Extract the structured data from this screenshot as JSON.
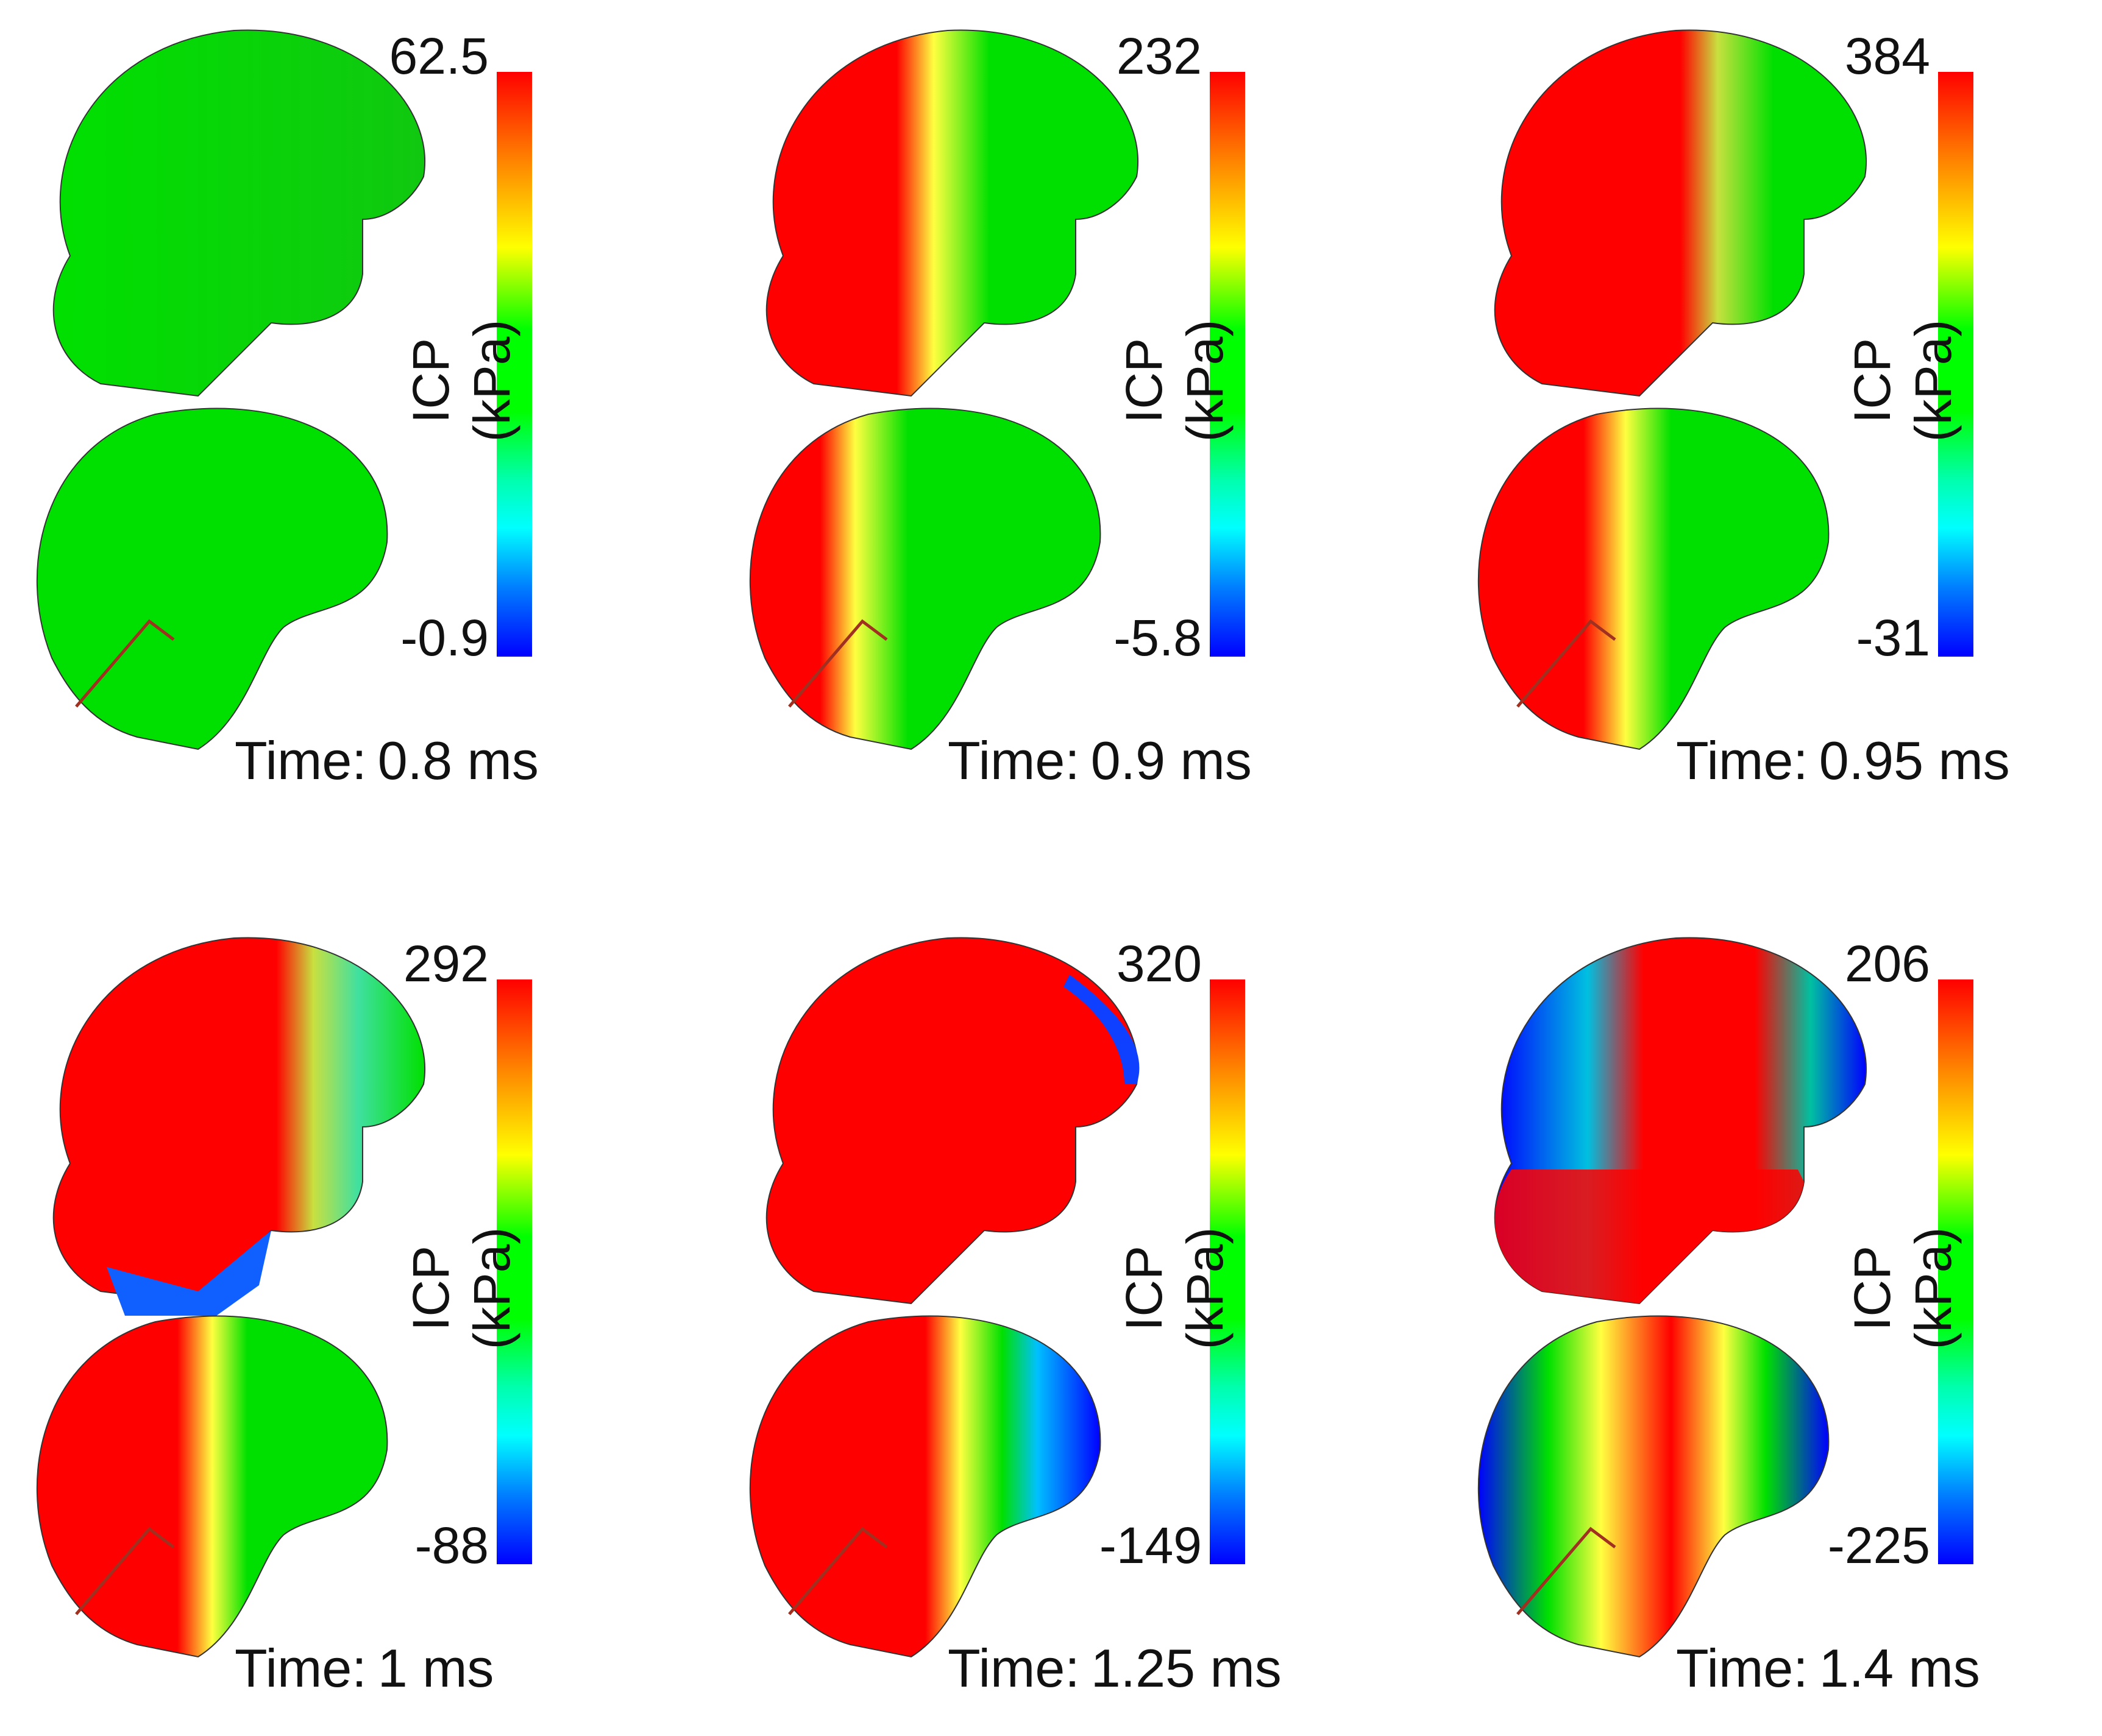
{
  "colorbar_label": "ICP (kPa)",
  "time_prefix": "Time:",
  "colors": {
    "red": "#ff0000",
    "green": "#00e000",
    "yellow": "#ffff00",
    "blue": "#0000ff",
    "cyan": "#00ffff",
    "outline": "#333333"
  },
  "panels": [
    {
      "time": "0.8 ms",
      "max": "62.5",
      "min": "-0.9"
    },
    {
      "time": "0.9 ms",
      "max": "232",
      "min": "-5.8"
    },
    {
      "time": "0.95 ms",
      "max": "384",
      "min": "-31"
    },
    {
      "time": "1 ms",
      "max": "292",
      "min": "-88"
    },
    {
      "time": "1.25 ms",
      "max": "320",
      "min": "-149"
    },
    {
      "time": "1.4 ms",
      "max": "206",
      "min": "-225"
    }
  ]
}
